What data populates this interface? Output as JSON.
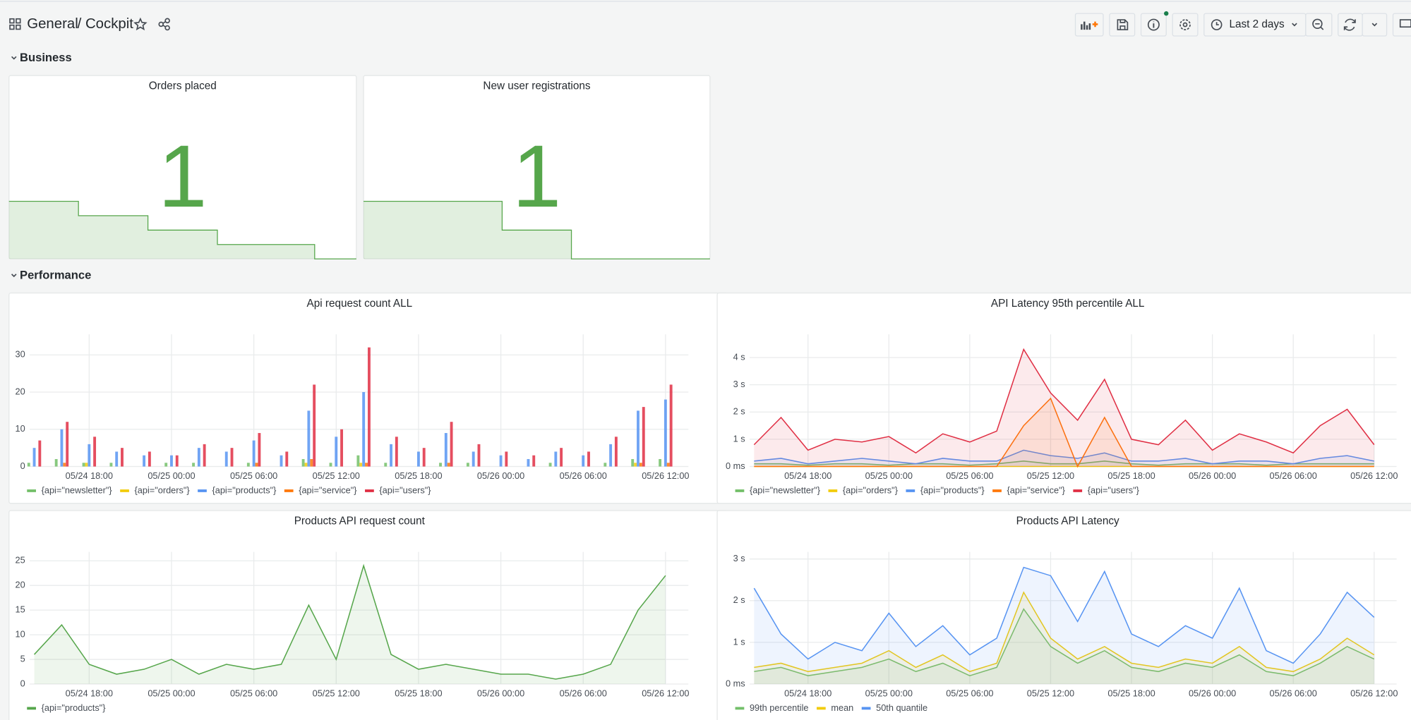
{
  "header": {
    "breadcrumb": [
      "General",
      "/ Cockpit"
    ],
    "time_range": "Last 2 days"
  },
  "rows": [
    "Business",
    "Performance"
  ],
  "stat_panels": [
    {
      "title": "Orders placed",
      "value": 1,
      "color": "#56a64b",
      "ylim": [
        0,
        11
      ],
      "sparkline": [
        4,
        4,
        4,
        4,
        4,
        3,
        3,
        3,
        3,
        3,
        2,
        2,
        2,
        2,
        2,
        1,
        1,
        1,
        1,
        1,
        1,
        1,
        0,
        0,
        0
      ]
    },
    {
      "title": "New user registrations",
      "value": 1,
      "color": "#56a64b",
      "ylim": [
        0,
        11
      ],
      "sparkline": [
        4,
        4,
        4,
        4,
        4,
        4,
        4,
        4,
        4,
        4,
        2,
        2,
        2,
        2,
        2,
        0,
        0,
        0,
        0,
        0,
        0,
        0,
        0,
        0,
        0
      ]
    }
  ],
  "chart_data": [
    {
      "type": "bar",
      "title": "Api request count ALL",
      "grid": true,
      "legend": "bottom",
      "x": [
        "05/24 14:00",
        "05/24 16:00",
        "05/24 18:00",
        "05/24 20:00",
        "05/24 22:00",
        "05/25 00:00",
        "05/25 02:00",
        "05/25 04:00",
        "05/25 06:00",
        "05/25 08:00",
        "05/25 10:00",
        "05/25 12:00",
        "05/25 14:00",
        "05/25 16:00",
        "05/25 18:00",
        "05/25 20:00",
        "05/25 22:00",
        "05/26 00:00",
        "05/26 02:00",
        "05/26 04:00",
        "05/26 06:00",
        "05/26 08:00",
        "05/26 10:00",
        "05/26 12:00"
      ],
      "xlim": [
        "05/24 13:40",
        "05/26 13:40"
      ],
      "xticks": [
        "05/24 18:00",
        "05/25 00:00",
        "05/25 06:00",
        "05/25 12:00",
        "05/25 18:00",
        "05/26 00:00",
        "05/26 06:00",
        "05/26 12:00"
      ],
      "ylim": [
        0,
        35.5
      ],
      "yticks": [
        0,
        10,
        20,
        30
      ],
      "series": [
        {
          "name": "{api=\"newsletter\"}",
          "color": "#73bf69",
          "values": [
            1,
            2,
            1,
            1,
            0,
            1,
            1,
            0,
            1,
            0,
            2,
            1,
            3,
            1,
            0,
            1,
            1,
            0,
            0,
            1,
            0,
            1,
            2,
            2
          ]
        },
        {
          "name": "{api=\"orders\"}",
          "color": "#f2cc0c",
          "values": [
            0,
            0,
            1,
            0,
            0,
            0,
            0,
            0,
            0,
            0,
            1,
            0,
            1,
            0,
            0,
            0,
            0,
            0,
            0,
            0,
            0,
            0,
            1,
            0
          ]
        },
        {
          "name": "{api=\"products\"}",
          "color": "#5794f2",
          "values": [
            5,
            10,
            6,
            4,
            3,
            3,
            5,
            4,
            7,
            3,
            15,
            8,
            20,
            6,
            4,
            9,
            4,
            3,
            2,
            4,
            3,
            6,
            15,
            18
          ]
        },
        {
          "name": "{api=\"service\"}",
          "color": "#ff780a",
          "values": [
            0,
            1,
            0,
            0,
            0,
            0,
            0,
            0,
            1,
            0,
            2,
            0,
            1,
            0,
            0,
            1,
            0,
            0,
            0,
            0,
            0,
            0,
            1,
            1
          ]
        },
        {
          "name": "{api=\"users\"}",
          "color": "#e02f44",
          "values": [
            7,
            12,
            8,
            5,
            4,
            3,
            6,
            5,
            9,
            4,
            22,
            10,
            32,
            8,
            5,
            12,
            6,
            4,
            3,
            5,
            4,
            8,
            16,
            22
          ]
        }
      ]
    },
    {
      "type": "line",
      "title": "API Latency 95th percentile ALL",
      "grid": true,
      "legend": "bottom",
      "fill": true,
      "x": [
        "05/24 14:00",
        "05/24 16:00",
        "05/24 18:00",
        "05/24 20:00",
        "05/24 22:00",
        "05/25 00:00",
        "05/25 02:00",
        "05/25 04:00",
        "05/25 06:00",
        "05/25 08:00",
        "05/25 10:00",
        "05/25 12:00",
        "05/25 14:00",
        "05/25 16:00",
        "05/25 18:00",
        "05/25 20:00",
        "05/25 22:00",
        "05/26 00:00",
        "05/26 02:00",
        "05/26 04:00",
        "05/26 06:00",
        "05/26 08:00",
        "05/26 10:00",
        "05/26 12:00"
      ],
      "xlim": [
        "05/24 13:40",
        "05/26 13:40"
      ],
      "xticks": [
        "05/24 18:00",
        "05/25 00:00",
        "05/25 06:00",
        "05/25 12:00",
        "05/25 18:00",
        "05/26 00:00",
        "05/26 06:00",
        "05/26 12:00"
      ],
      "ylim": [
        0,
        4.85
      ],
      "yticks": [
        {
          "value": 0,
          "label": "0 ms"
        },
        {
          "value": 1,
          "label": "1 s"
        },
        {
          "value": 2,
          "label": "2 s"
        },
        {
          "value": 3,
          "label": "3 s"
        },
        {
          "value": 4,
          "label": "4 s"
        }
      ],
      "series": [
        {
          "name": "{api=\"newsletter\"}",
          "color": "#73bf69",
          "values": [
            0.1,
            0.1,
            0.05,
            0.1,
            0.1,
            0.05,
            0.1,
            0.1,
            0.05,
            0.1,
            0.2,
            0.1,
            0.1,
            0.2,
            0.1,
            0.05,
            0.1,
            0.1,
            0.1,
            0.05,
            0.1,
            0.1,
            0.1,
            0.1
          ]
        },
        {
          "name": "{api=\"orders\"}",
          "color": "#f2cc0c",
          "values": [
            0,
            0,
            0,
            0,
            0,
            0,
            0,
            0,
            0,
            0,
            0,
            0,
            0,
            0,
            0,
            0,
            0,
            0,
            0,
            0,
            0,
            0,
            0,
            0
          ]
        },
        {
          "name": "{api=\"products\"}",
          "color": "#5794f2",
          "values": [
            0.2,
            0.3,
            0.1,
            0.2,
            0.3,
            0.2,
            0.1,
            0.3,
            0.2,
            0.2,
            0.6,
            0.4,
            0.3,
            0.5,
            0.2,
            0.2,
            0.3,
            0.1,
            0.2,
            0.2,
            0.1,
            0.3,
            0.4,
            0.2
          ]
        },
        {
          "name": "{api=\"service\"}",
          "color": "#ff780a",
          "values": [
            0,
            0,
            0,
            0,
            0,
            0,
            0,
            0,
            0,
            0,
            1.5,
            2.5,
            0,
            1.8,
            0,
            0,
            0,
            0,
            0,
            0,
            0,
            0,
            0,
            0
          ]
        },
        {
          "name": "{api=\"users\"}",
          "color": "#e02f44",
          "values": [
            0.8,
            1.8,
            0.6,
            1,
            0.9,
            1.1,
            0.5,
            1.2,
            0.9,
            1.3,
            4.3,
            2.7,
            1.7,
            3.2,
            1,
            0.8,
            1.7,
            0.6,
            1.2,
            0.9,
            0.5,
            1.5,
            2.1,
            0.8
          ]
        }
      ]
    },
    {
      "type": "line",
      "title": "Products API request count",
      "grid": true,
      "legend": "bottom",
      "fill": true,
      "x": [
        "05/24 14:00",
        "05/24 16:00",
        "05/24 18:00",
        "05/24 20:00",
        "05/24 22:00",
        "05/25 00:00",
        "05/25 02:00",
        "05/25 04:00",
        "05/25 06:00",
        "05/25 08:00",
        "05/25 10:00",
        "05/25 12:00",
        "05/25 14:00",
        "05/25 16:00",
        "05/25 18:00",
        "05/25 20:00",
        "05/25 22:00",
        "05/26 00:00",
        "05/26 02:00",
        "05/26 04:00",
        "05/26 06:00",
        "05/26 08:00",
        "05/26 10:00",
        "05/26 12:00"
      ],
      "xlim": [
        "05/24 13:40",
        "05/26 13:40"
      ],
      "xticks": [
        "05/24 18:00",
        "05/25 00:00",
        "05/25 06:00",
        "05/25 12:00",
        "05/25 18:00",
        "05/26 00:00",
        "05/26 06:00",
        "05/26 12:00"
      ],
      "ylim": [
        0,
        26.8
      ],
      "yticks": [
        0,
        5,
        10,
        15,
        20,
        25
      ],
      "series": [
        {
          "name": "{api=\"products\"}",
          "color": "#56a64b",
          "values": [
            6,
            12,
            4,
            2,
            3,
            5,
            2,
            4,
            3,
            4,
            16,
            5,
            24,
            6,
            3,
            4,
            3,
            2,
            2,
            1,
            2,
            4,
            15,
            22
          ]
        }
      ]
    },
    {
      "type": "line",
      "title": "Products API Latency",
      "grid": true,
      "legend": "bottom",
      "fill": true,
      "x": [
        "05/24 14:00",
        "05/24 16:00",
        "05/24 18:00",
        "05/24 20:00",
        "05/24 22:00",
        "05/25 00:00",
        "05/25 02:00",
        "05/25 04:00",
        "05/25 06:00",
        "05/25 08:00",
        "05/25 10:00",
        "05/25 12:00",
        "05/25 14:00",
        "05/25 16:00",
        "05/25 18:00",
        "05/25 20:00",
        "05/25 22:00",
        "05/26 00:00",
        "05/26 02:00",
        "05/26 04:00",
        "05/26 06:00",
        "05/26 08:00",
        "05/26 10:00",
        "05/26 12:00"
      ],
      "xlim": [
        "05/24 13:40",
        "05/26 13:40"
      ],
      "xticks": [
        "05/24 18:00",
        "05/25 00:00",
        "05/25 06:00",
        "05/25 12:00",
        "05/25 18:00",
        "05/26 00:00",
        "05/26 06:00",
        "05/26 12:00"
      ],
      "ylim": [
        0,
        3.17
      ],
      "yticks": [
        {
          "value": 0,
          "label": "0 ms"
        },
        {
          "value": 1,
          "label": "1 s"
        },
        {
          "value": 2,
          "label": "2 s"
        },
        {
          "value": 3,
          "label": "3 s"
        }
      ],
      "series": [
        {
          "name": "99th percentile",
          "color": "#73bf69",
          "values": [
            0.3,
            0.4,
            0.2,
            0.3,
            0.4,
            0.6,
            0.3,
            0.5,
            0.2,
            0.4,
            1.8,
            0.9,
            0.5,
            0.8,
            0.4,
            0.3,
            0.5,
            0.4,
            0.7,
            0.3,
            0.2,
            0.5,
            0.9,
            0.6
          ]
        },
        {
          "name": "mean",
          "color": "#f2cc0c",
          "values": [
            0.4,
            0.5,
            0.3,
            0.4,
            0.5,
            0.8,
            0.4,
            0.7,
            0.3,
            0.5,
            2.2,
            1.1,
            0.6,
            0.9,
            0.5,
            0.4,
            0.6,
            0.5,
            0.9,
            0.4,
            0.3,
            0.6,
            1.1,
            0.7
          ]
        },
        {
          "name": "50th quantile",
          "color": "#5794f2",
          "values": [
            2.3,
            1.2,
            0.6,
            1,
            0.8,
            1.7,
            0.9,
            1.4,
            0.7,
            1.1,
            2.8,
            2.6,
            1.5,
            2.7,
            1.2,
            0.9,
            1.4,
            1.1,
            2.3,
            0.8,
            0.5,
            1.2,
            2.2,
            1.6
          ]
        }
      ]
    }
  ]
}
